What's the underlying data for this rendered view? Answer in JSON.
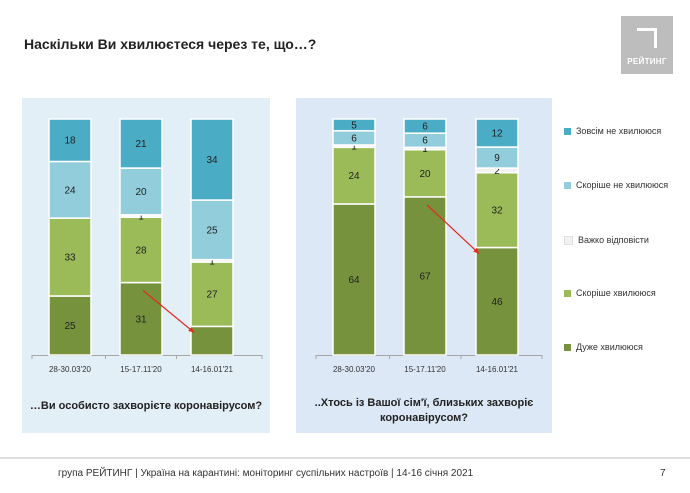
{
  "title": "Наскільки Ви хвилюєтеся через те, що…?",
  "logo_text": "РЕЙТИНГ",
  "footer": "група РЕЙТИНГ | Україна на карантині: моніторинг суспільних настроїв | 14-16 січня 2021",
  "page_number": "7",
  "colors": {
    "Дуже хвилююся": "#76923c",
    "Скоріше хвилююся": "#9bbb59",
    "Важко відповісти": "#f2f2f2",
    "Скоріше не хвилююся": "#92cddc",
    "Зовсім не хвилююся": "#4bacc6",
    "arrow": "#e8261d"
  },
  "legend": [
    "Зовсім не хвилююся",
    "Скоріше не хвилююся",
    "Важко відповісти",
    "Скоріше хвилююся",
    "Дуже хвилююся"
  ],
  "chart_data": [
    {
      "type": "bar",
      "stacked": true,
      "caption": "…Ви особисто захворієте коронавірусом?",
      "categories": [
        "28-30.03'20",
        "15-17.11'20",
        "14-16.01'21"
      ],
      "series": [
        {
          "name": "Дуже хвилююся",
          "values": [
            25,
            31,
            12
          ]
        },
        {
          "name": "Скоріше хвилююся",
          "values": [
            33,
            28,
            27
          ]
        },
        {
          "name": "Важко відповісти",
          "values": [
            0,
            1,
            1
          ]
        },
        {
          "name": "Скоріше не хвилююся",
          "values": [
            24,
            20,
            25
          ]
        },
        {
          "name": "Зовсім не хвилююся",
          "values": [
            18,
            21,
            34
          ]
        }
      ],
      "hidden_labels": [
        [
          2,
          0
        ]
      ],
      "arrow": {
        "from_category": 1,
        "to_category": 2,
        "series": "Дуже хвилююся"
      }
    },
    {
      "type": "bar",
      "stacked": true,
      "caption": "..Хтось із Вашої сім'ї, близьких захворіє коронавірусом?",
      "categories": [
        "28-30.03'20",
        "15-17.11'20",
        "14-16.01'21"
      ],
      "series": [
        {
          "name": "Дуже хвилююся",
          "values": [
            64,
            67,
            46
          ]
        },
        {
          "name": "Скоріше хвилююся",
          "values": [
            24,
            20,
            32
          ]
        },
        {
          "name": "Важко відповісти",
          "values": [
            1,
            1,
            2
          ]
        },
        {
          "name": "Скоріше не хвилююся",
          "values": [
            6,
            6,
            9
          ]
        },
        {
          "name": "Зовсім не хвилююся",
          "values": [
            5,
            6,
            12
          ]
        }
      ],
      "hidden_labels": [],
      "arrow": {
        "from_category": 1,
        "to_category": 2,
        "series": "Дуже хвилююся"
      }
    }
  ]
}
